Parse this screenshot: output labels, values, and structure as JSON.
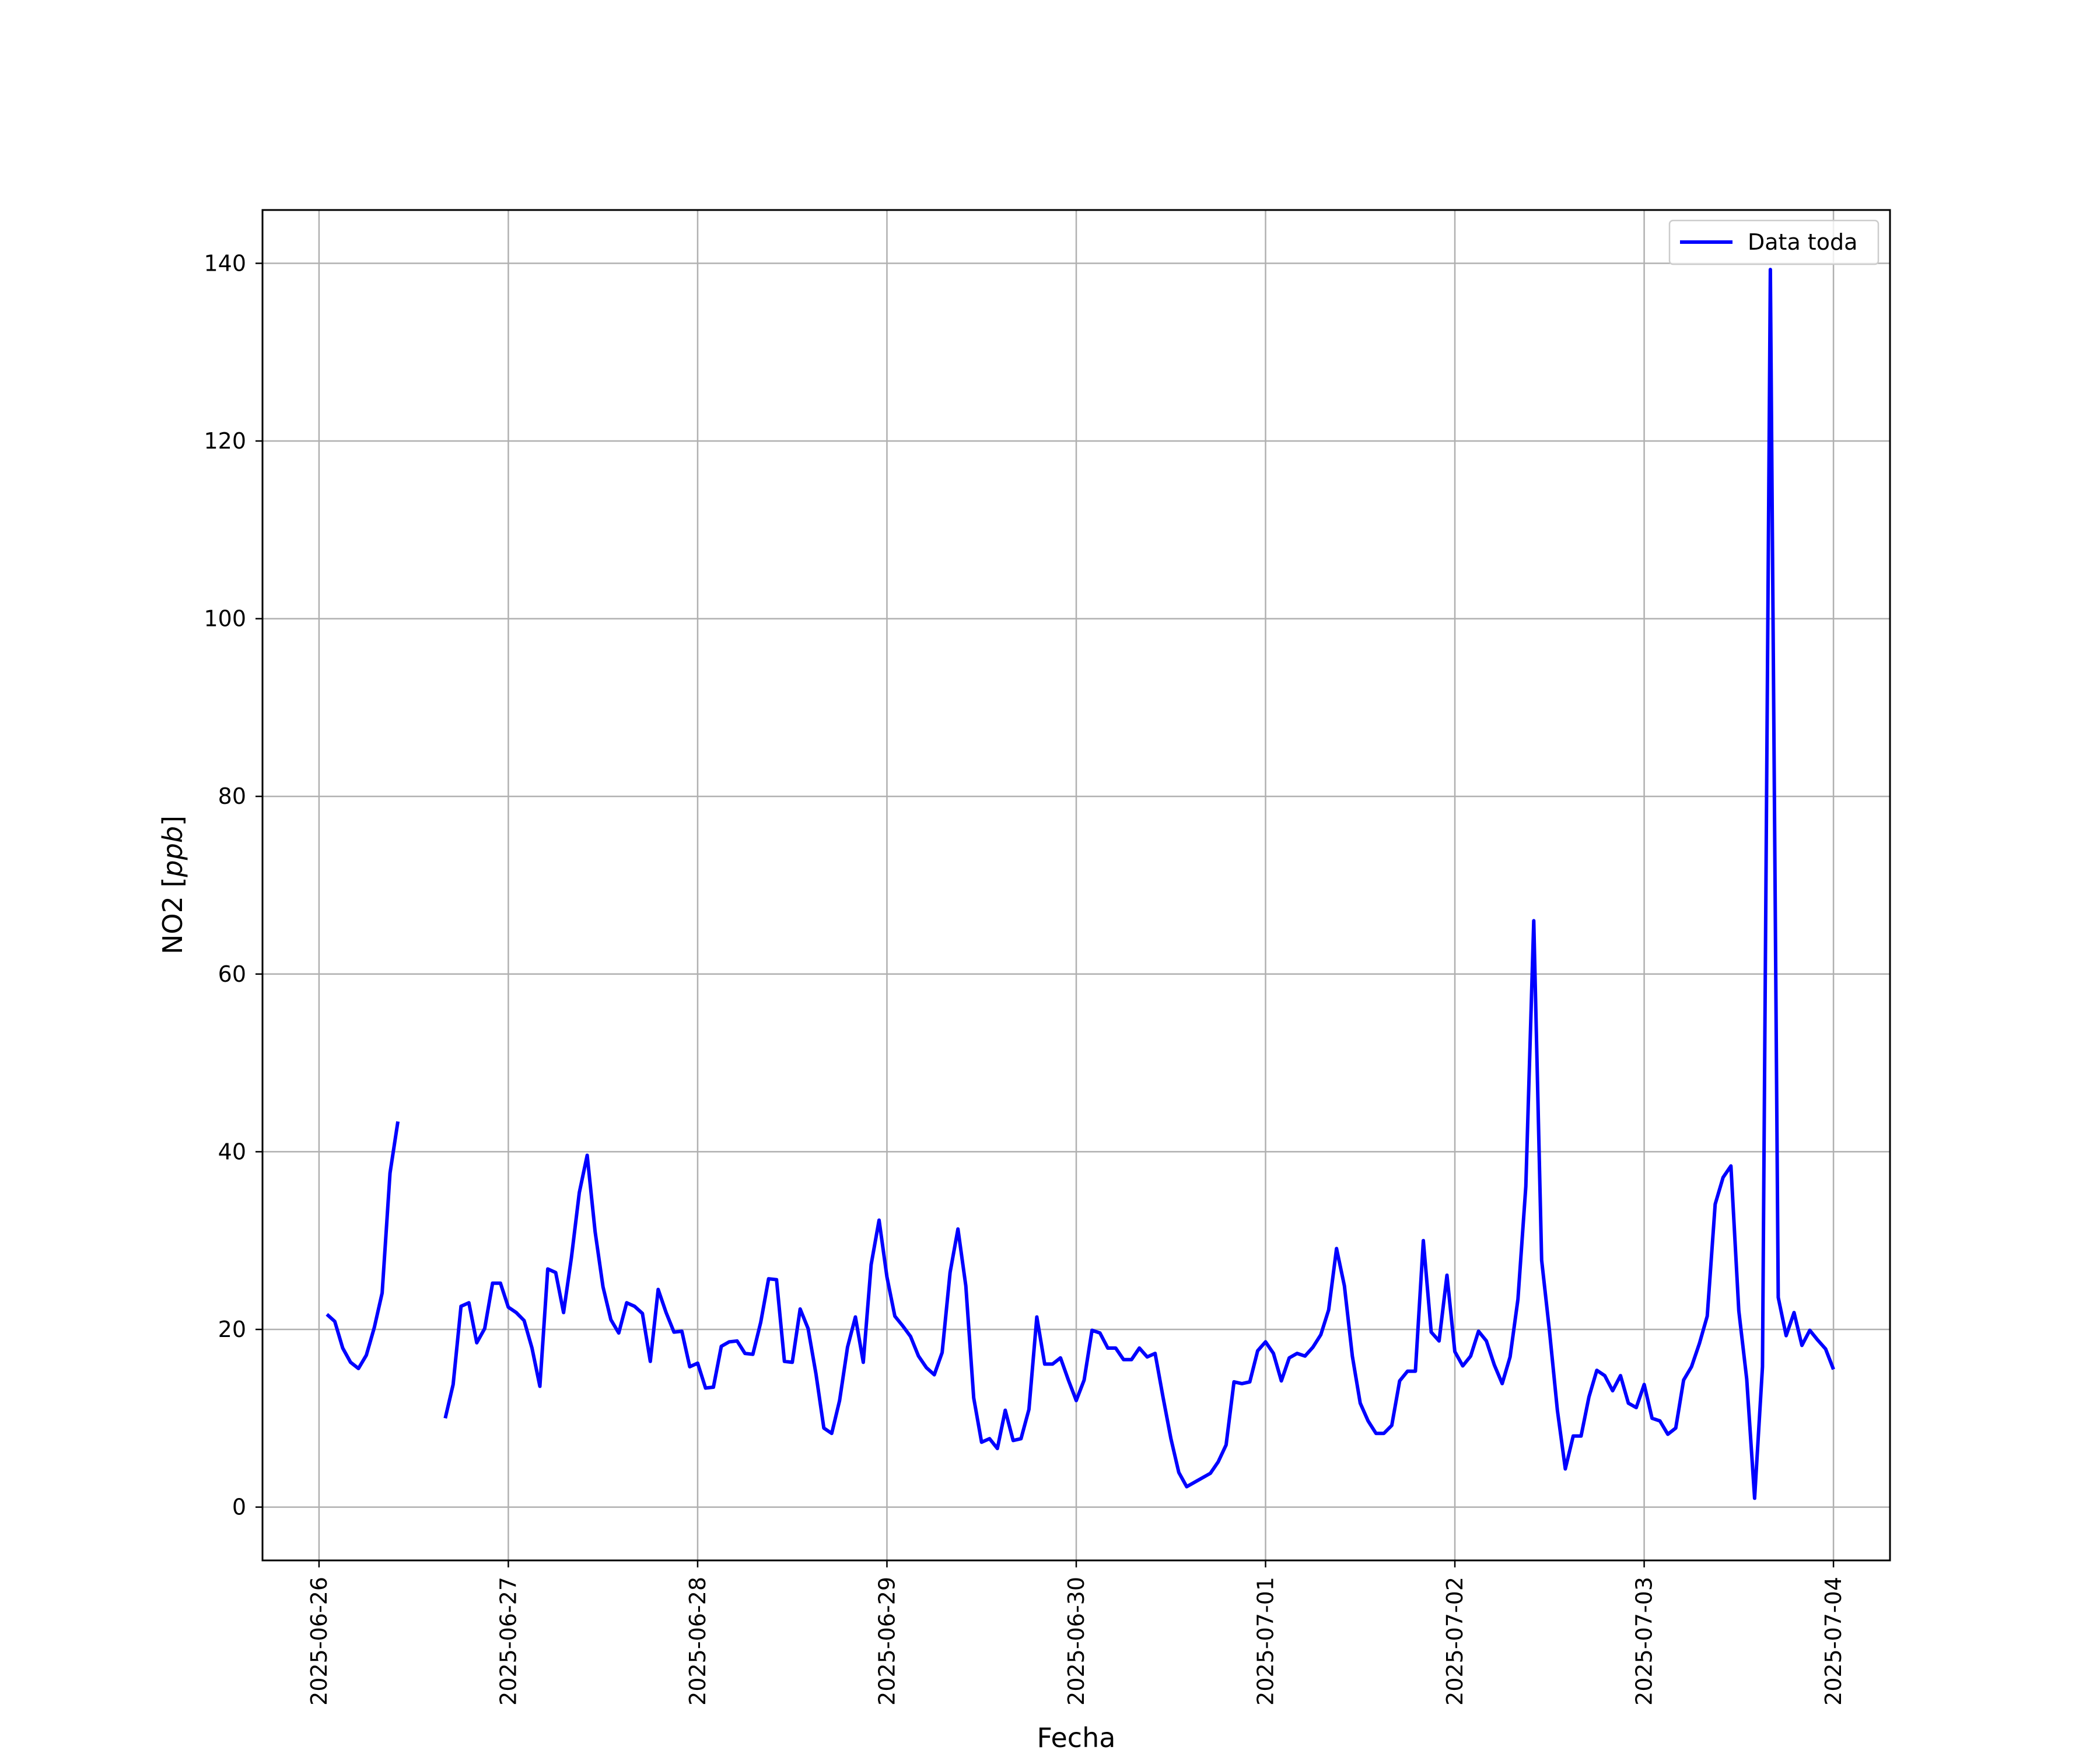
{
  "chart_data": {
    "type": "line",
    "title": "",
    "xlabel": "Fecha",
    "ylabel": "NO2 [ppb]",
    "ylabel_parts": {
      "prefix": "NO2 [",
      "unit": "ppb",
      "suffix": "]"
    },
    "xlim": [
      "2025-06-25T16:50",
      "2025-07-04T07:10"
    ],
    "ylim": [
      -6,
      146
    ],
    "x_ticks": [
      "2025-06-26",
      "2025-06-27",
      "2025-06-28",
      "2025-06-29",
      "2025-06-30",
      "2025-07-01",
      "2025-07-02",
      "2025-07-03",
      "2025-07-04"
    ],
    "y_ticks": [
      0,
      20,
      40,
      60,
      80,
      100,
      120,
      140
    ],
    "grid": true,
    "legend_position": "top-right",
    "series": [
      {
        "name": "Data toda",
        "color": "#0000ff",
        "segments": [
          {
            "start": "2025-06-26T01:00",
            "step_hours": 1,
            "values": [
              21.7,
              20.9,
              17.9,
              16.3,
              15.6,
              17.1,
              20.2,
              24.1,
              37.6,
              43.4
            ]
          },
          {
            "start": "2025-06-26T16:00",
            "step_hours": 1,
            "values": [
              10.0,
              13.8,
              22.6,
              23.0,
              18.5,
              20.1,
              25.2,
              25.2,
              22.5,
              21.9,
              21.0,
              17.9,
              13.6,
              26.8,
              26.4,
              21.9,
              28.1,
              35.4,
              39.6,
              31.0,
              24.8,
              21.1,
              19.6,
              23.0,
              22.6,
              21.8,
              16.4,
              24.5,
              21.9,
              19.7,
              19.8,
              15.8,
              16.2,
              13.4,
              13.5,
              18.1,
              18.6,
              18.7,
              17.3,
              17.2,
              20.8,
              25.7,
              25.6,
              16.4,
              16.3,
              22.3,
              20.1,
              15.0,
              8.9,
              8.3,
              12.0,
              18.0,
              21.4,
              16.3,
              27.3,
              32.3,
              25.9,
              21.5,
              20.4,
              19.2,
              17.0,
              15.7,
              14.9,
              17.4,
              26.4,
              31.3,
              24.9,
              12.3,
              7.3,
              7.7,
              6.6,
              10.9,
              7.5,
              7.7,
              11.0,
              21.4,
              16.1,
              16.1,
              16.8,
              14.3,
              12.0,
              14.3,
              19.9,
              19.6,
              17.9,
              17.9,
              16.6,
              16.6,
              17.9,
              16.9,
              17.3,
              12.4,
              7.7,
              3.9,
              2.3,
              2.8,
              3.3,
              3.8,
              5.1,
              7.0,
              14.1,
              13.9,
              14.1,
              17.6,
              18.6,
              17.3,
              14.2,
              16.8,
              17.3,
              17.0,
              18.0,
              19.4,
              22.2,
              29.1,
              24.9,
              17.0,
              11.7,
              9.7,
              8.3,
              8.3,
              9.2,
              14.2,
              15.3,
              15.3,
              30.0,
              19.7,
              18.7,
              26.1,
              17.5,
              15.9,
              17.0,
              19.8,
              18.7,
              16.0,
              13.9,
              16.9,
              23.4,
              36.1,
              66.0,
              27.8,
              19.8,
              10.9,
              4.3,
              8.0,
              8.0,
              12.4,
              15.4,
              14.8,
              13.1,
              14.8,
              11.7,
              11.2,
              13.8,
              10.0,
              9.7,
              8.2,
              8.9,
              14.3,
              15.8,
              18.4,
              21.5,
              34.1,
              37.1,
              38.4,
              22.1,
              14.4,
              1.0,
              15.8,
              139.3,
              23.6,
              19.3,
              21.9,
              18.2,
              19.9,
              18.8,
              17.8,
              15.5
            ]
          }
        ]
      }
    ]
  }
}
